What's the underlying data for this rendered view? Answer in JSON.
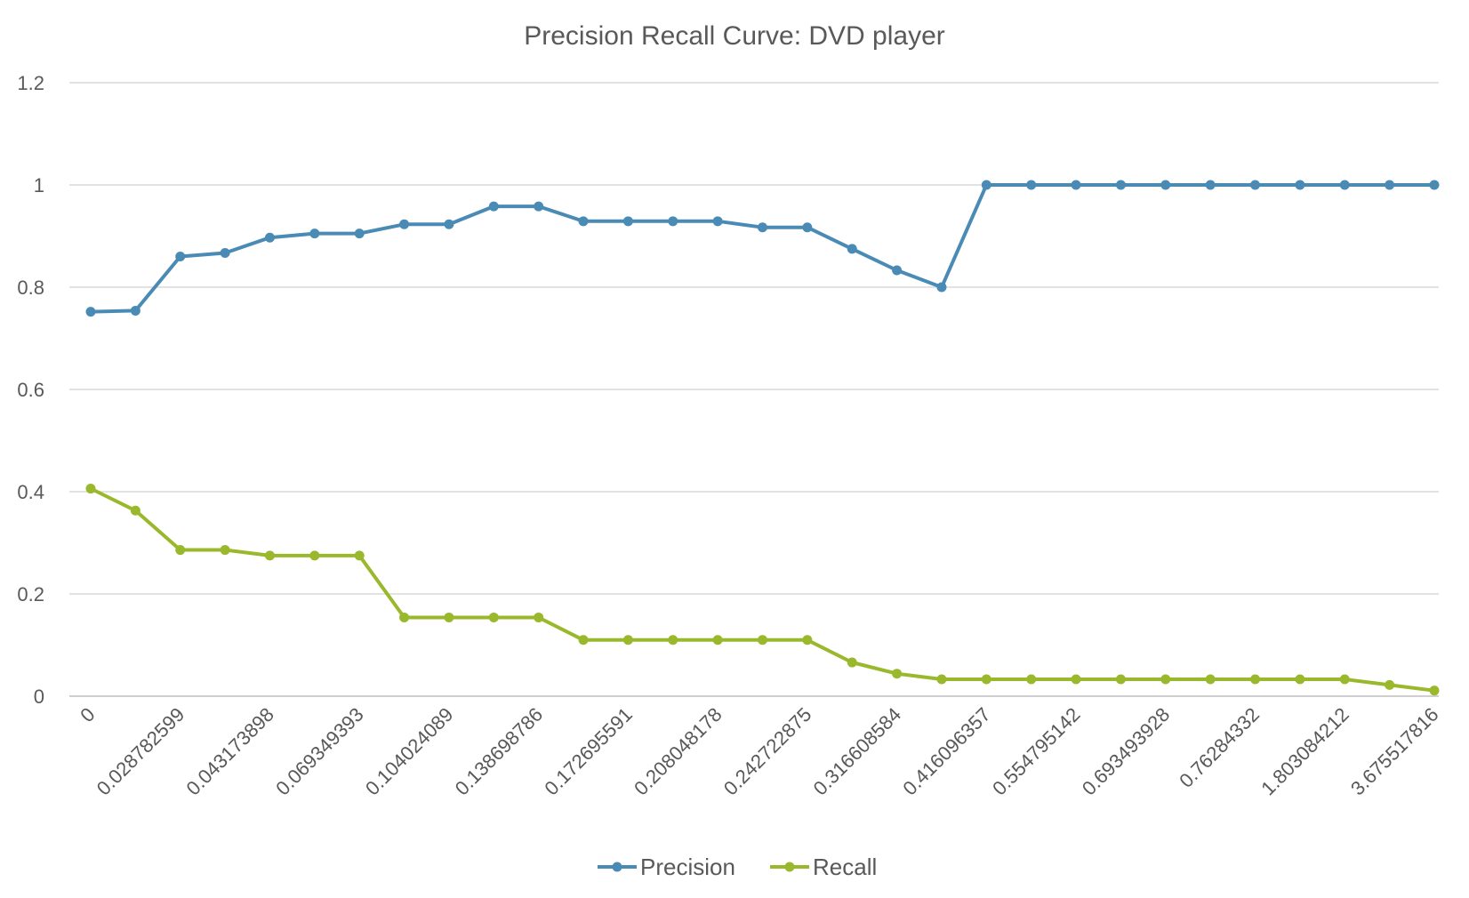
{
  "chart_data": {
    "type": "line",
    "title": "Precision Recall Curve: DVD player",
    "xlabel": "",
    "ylabel": "",
    "ylim": [
      0,
      1.2
    ],
    "y_ticks": [
      "0",
      "0.2",
      "0.4",
      "0.6",
      "0.8",
      "1",
      "1.2"
    ],
    "grid": true,
    "legend_position": "bottom",
    "point_count": 31,
    "x_tick_labels": [
      {
        "index": 0,
        "label": "0"
      },
      {
        "index": 2,
        "label": "0.028782599"
      },
      {
        "index": 4,
        "label": "0.043173898"
      },
      {
        "index": 6,
        "label": "0.069349393"
      },
      {
        "index": 8,
        "label": "0.104024089"
      },
      {
        "index": 10,
        "label": "0.138698786"
      },
      {
        "index": 12,
        "label": "0.172695591"
      },
      {
        "index": 14,
        "label": "0.208048178"
      },
      {
        "index": 16,
        "label": "0.242722875"
      },
      {
        "index": 18,
        "label": "0.316608584"
      },
      {
        "index": 20,
        "label": "0.416096357"
      },
      {
        "index": 22,
        "label": "0.554795142"
      },
      {
        "index": 24,
        "label": "0.693493928"
      },
      {
        "index": 26,
        "label": "0.76284332"
      },
      {
        "index": 28,
        "label": "1.803084212"
      },
      {
        "index": 30,
        "label": "3.675517816"
      }
    ],
    "series": [
      {
        "name": "Precision",
        "color": "#4a8bb5",
        "values": [
          0.752,
          0.754,
          0.86,
          0.867,
          0.897,
          0.905,
          0.905,
          0.923,
          0.923,
          0.958,
          0.958,
          0.929,
          0.929,
          0.929,
          0.929,
          0.917,
          0.917,
          0.875,
          0.833,
          0.8,
          1,
          1,
          1,
          1,
          1,
          1,
          1,
          1,
          1,
          1,
          1
        ]
      },
      {
        "name": "Recall",
        "color": "#9ab82b",
        "values": [
          0.406,
          0.363,
          0.286,
          0.286,
          0.275,
          0.275,
          0.275,
          0.154,
          0.154,
          0.154,
          0.154,
          0.11,
          0.11,
          0.11,
          0.11,
          0.11,
          0.11,
          0.066,
          0.044,
          0.033,
          0.033,
          0.033,
          0.033,
          0.033,
          0.033,
          0.033,
          0.033,
          0.033,
          0.033,
          0.022,
          0.011
        ]
      }
    ]
  }
}
